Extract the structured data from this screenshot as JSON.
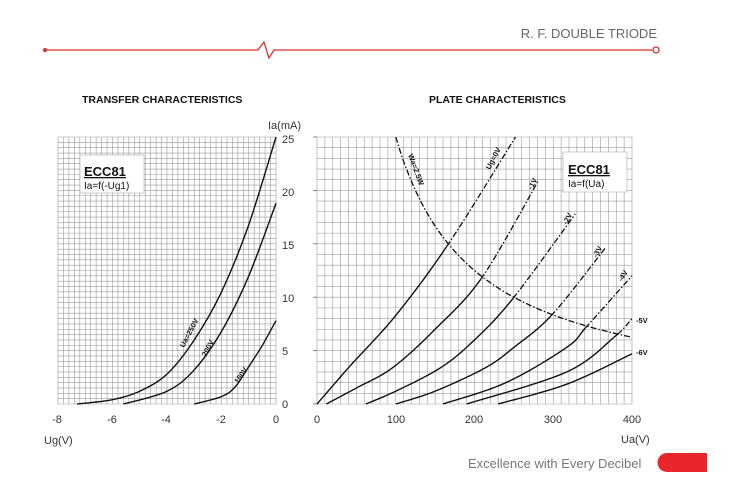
{
  "header": {
    "title": "R. F. DOUBLE TRIODE",
    "accent": "#d9302c"
  },
  "footer": {
    "tagline": "Excellence with Every Decibel",
    "accent": "#e8262b"
  },
  "chart_data": [
    {
      "type": "line",
      "title": "TRANSFER CHARACTERISTICS",
      "xlabel": "Ug(V)",
      "ylabel": "Ia(mA)",
      "xlim": [
        -8,
        0
      ],
      "ylim": [
        0,
        25
      ],
      "xticks": [
        "-8",
        "-6",
        "-4",
        "-2",
        "0"
      ],
      "yticks": [
        "0",
        "5",
        "10",
        "15",
        "20",
        "25"
      ],
      "grid": true,
      "legend_box": {
        "tube": "ECC81",
        "formula": "Ia=f(-Ug1)"
      },
      "series": [
        {
          "name": "Ua=250V",
          "points": [
            [
              -7.3,
              0
            ],
            [
              -6,
              0.4
            ],
            [
              -5,
              1.2
            ],
            [
              -4,
              2.8
            ],
            [
              -3,
              6
            ],
            [
              -2,
              10.5
            ],
            [
              -1,
              16.8
            ],
            [
              0,
              25
            ]
          ]
        },
        {
          "name": "200V",
          "points": [
            [
              -5.6,
              0
            ],
            [
              -4,
              1.2
            ],
            [
              -3,
              3.2
            ],
            [
              -2,
              6.8
            ],
            [
              -1,
              12
            ],
            [
              0,
              18.8
            ]
          ]
        },
        {
          "name": "100V",
          "points": [
            [
              -3,
              0
            ],
            [
              -2,
              0.7
            ],
            [
              -1.5,
              1.6
            ],
            [
              -1,
              3.5
            ],
            [
              -0.5,
              5.5
            ],
            [
              0,
              7.8
            ]
          ]
        }
      ]
    },
    {
      "type": "line",
      "title": "PLATE CHARACTERISTICS",
      "xlabel": "Ua(V)",
      "ylabel": "Ia(mA)",
      "xlim": [
        0,
        400
      ],
      "ylim": [
        0,
        25
      ],
      "xticks": [
        "0",
        "100",
        "200",
        "300",
        "400"
      ],
      "grid": true,
      "legend_box": {
        "tube": "ECC81",
        "formula": "Ia=f(Ua)"
      },
      "max_dissipation": {
        "name": "Wa=2.5W",
        "watts": 2.5
      },
      "series": [
        {
          "name": "Ug=0V",
          "points": [
            [
              0,
              0
            ],
            [
              40,
              3.4
            ],
            [
              100,
              8.3
            ],
            [
              167,
              15
            ],
            [
              252,
              25
            ]
          ]
        },
        {
          "name": "-1V",
          "points": [
            [
              12,
              0
            ],
            [
              50,
              1.5
            ],
            [
              96,
              3.4
            ],
            [
              150,
              7
            ],
            [
              210,
              11.9
            ],
            [
              281,
              20.9
            ]
          ]
        },
        {
          "name": "-2V",
          "points": [
            [
              62,
              0
            ],
            [
              100,
              1.2
            ],
            [
              157,
              3.4
            ],
            [
              200,
              6
            ],
            [
              249,
              9.9
            ],
            [
              328,
              17.8
            ]
          ]
        },
        {
          "name": "-3V",
          "points": [
            [
              100,
              0
            ],
            [
              150,
              1.2
            ],
            [
              214,
              3.4
            ],
            [
              250,
              5.3
            ],
            [
              299,
              8.4
            ],
            [
              366,
              14.6
            ]
          ]
        },
        {
          "name": "-4V",
          "points": [
            [
              160,
              0
            ],
            [
              240,
              2
            ],
            [
              317,
              5.3
            ],
            [
              343,
              7.3
            ],
            [
              400,
              12
            ]
          ]
        },
        {
          "name": "-5V",
          "points": [
            [
              190,
              0
            ],
            [
              317,
              3.0
            ],
            [
              378,
              6.3
            ],
            [
              400,
              8.0
            ]
          ]
        },
        {
          "name": "-6V",
          "points": [
            [
              230,
              0
            ],
            [
              317,
              1.85
            ],
            [
              400,
              4.7
            ]
          ]
        }
      ]
    }
  ]
}
